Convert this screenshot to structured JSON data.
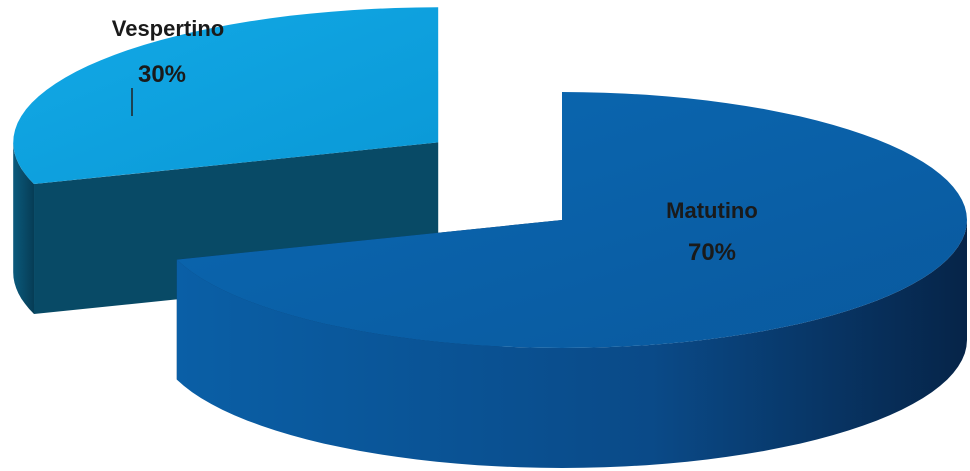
{
  "chart_data": {
    "type": "pie",
    "style": "3d-exploded",
    "title": "",
    "series": [
      {
        "name": "Vespertino",
        "value": 30,
        "label": "30%",
        "color": "#0aa0df",
        "side_color": "#084a66",
        "label_color": "#1a1a1a"
      },
      {
        "name": "Matutino",
        "value": 70,
        "label": "70%",
        "color": "#0a64ad",
        "side_color": "#0a2f5a",
        "label_color": "#1a1a1a"
      }
    ],
    "legend": "none",
    "data_labels": "category-and-percent"
  }
}
